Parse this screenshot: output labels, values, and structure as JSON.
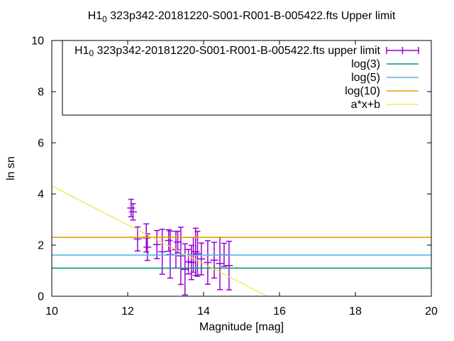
{
  "title": {
    "prefix": "H1",
    "sub": "0",
    "rest": " 323p342-20181220-S001-R001-B-005422.fts Upper limit"
  },
  "chart_data": {
    "type": "scatter",
    "xlabel": "Magnitude [mag]",
    "ylabel": "ln sn",
    "xlim": [
      10,
      20
    ],
    "ylim": [
      0,
      10
    ],
    "xticks": [
      10,
      12,
      14,
      16,
      18,
      20
    ],
    "yticks": [
      0,
      2,
      4,
      6,
      8,
      10
    ],
    "grid": false,
    "legend_position": "top-right",
    "legend_box": true,
    "series": [
      {
        "type": "errorbars",
        "label_prefix": "H1",
        "label_sub": "0",
        "label_rest": " 323p342-20181220-S001-R001-B-005422.fts upper limit",
        "color": "#9400d3",
        "points": [
          {
            "x": 12.09,
            "y": 3.45,
            "err": 0.34
          },
          {
            "x": 12.14,
            "y": 3.3,
            "err": 0.32
          },
          {
            "x": 12.26,
            "y": 2.24,
            "err": 0.47
          },
          {
            "x": 12.49,
            "y": 2.28,
            "err": 0.55
          },
          {
            "x": 12.52,
            "y": 1.92,
            "err": 0.52
          },
          {
            "x": 12.77,
            "y": 2.02,
            "err": 0.55
          },
          {
            "x": 12.91,
            "y": 1.74,
            "err": 0.88
          },
          {
            "x": 13.08,
            "y": 2.18,
            "err": 0.42
          },
          {
            "x": 13.12,
            "y": 1.63,
            "err": 0.92
          },
          {
            "x": 13.27,
            "y": 1.82,
            "err": 0.72
          },
          {
            "x": 13.32,
            "y": 2.12,
            "err": 0.42
          },
          {
            "x": 13.4,
            "y": 1.58,
            "err": 1.12
          },
          {
            "x": 13.51,
            "y": 1.05,
            "err": 1.0
          },
          {
            "x": 13.6,
            "y": 1.35,
            "err": 0.48
          },
          {
            "x": 13.68,
            "y": 1.32,
            "err": 0.67
          },
          {
            "x": 13.73,
            "y": 1.62,
            "err": 0.68
          },
          {
            "x": 13.79,
            "y": 1.74,
            "err": 0.92
          },
          {
            "x": 13.84,
            "y": 1.66,
            "err": 0.88
          },
          {
            "x": 13.94,
            "y": 1.46,
            "err": 0.62
          },
          {
            "x": 14.11,
            "y": 1.32,
            "err": 0.85
          },
          {
            "x": 14.28,
            "y": 1.41,
            "err": 0.7
          },
          {
            "x": 14.43,
            "y": 1.28,
            "err": 1.02
          },
          {
            "x": 14.54,
            "y": 1.62,
            "err": 0.45
          },
          {
            "x": 14.67,
            "y": 1.2,
            "err": 0.95
          }
        ]
      },
      {
        "type": "hline",
        "label": "log(3)",
        "y": 1.0986,
        "color": "#009e73"
      },
      {
        "type": "hline",
        "label": "log(5)",
        "y": 1.6094,
        "color": "#56b4e9"
      },
      {
        "type": "hline",
        "label": "log(10)",
        "y": 2.3026,
        "color": "#e69f00"
      },
      {
        "type": "linear",
        "label": "a*x+b",
        "a": -0.759,
        "b": 11.9,
        "color": "#f0e442"
      }
    ]
  },
  "colors": {
    "background": "#ffffff",
    "border": "#000000",
    "text": "#000000"
  }
}
